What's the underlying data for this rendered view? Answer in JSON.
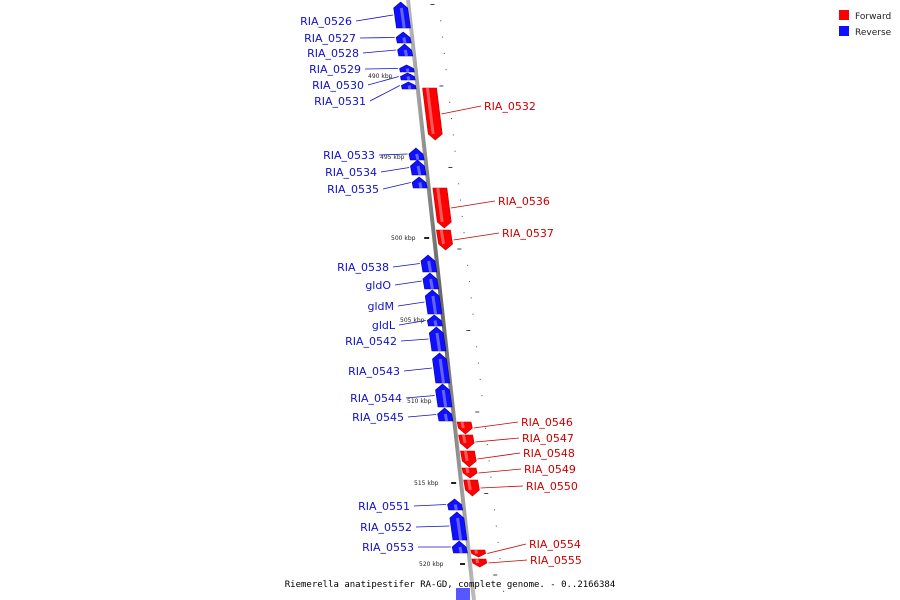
{
  "colors": {
    "forward": "#ff0000",
    "reverse": "#1010ff",
    "forward_dark": "#c00000",
    "reverse_dark": "#0000b0",
    "axis": "#888888"
  },
  "legend": {
    "forward": "Forward",
    "reverse": "Reverse"
  },
  "caption": "Riemerella anatipestifer RA-GD, complete genome. - 0..2166384",
  "ticks": [
    "490 kbp",
    "495 kbp",
    "500 kbp",
    "505 kbp",
    "510 kbp",
    "515 kbp",
    "520 kbp"
  ],
  "genes_reverse": [
    "RIA_0526",
    "RIA_0527",
    "RIA_0528",
    "RIA_0529",
    "RIA_0530",
    "RIA_0531",
    "RIA_0533",
    "RIA_0534",
    "RIA_0535",
    "RIA_0538",
    "gldO",
    "gldM",
    "gldL",
    "RIA_0542",
    "RIA_0543",
    "RIA_0544",
    "RIA_0545",
    "RIA_0551",
    "RIA_0552",
    "RIA_0553"
  ],
  "genes_forward": [
    "RIA_0532",
    "RIA_0536",
    "RIA_0537",
    "RIA_0546",
    "RIA_0547",
    "RIA_0548",
    "RIA_0549",
    "RIA_0550",
    "RIA_0554",
    "RIA_0555"
  ]
}
